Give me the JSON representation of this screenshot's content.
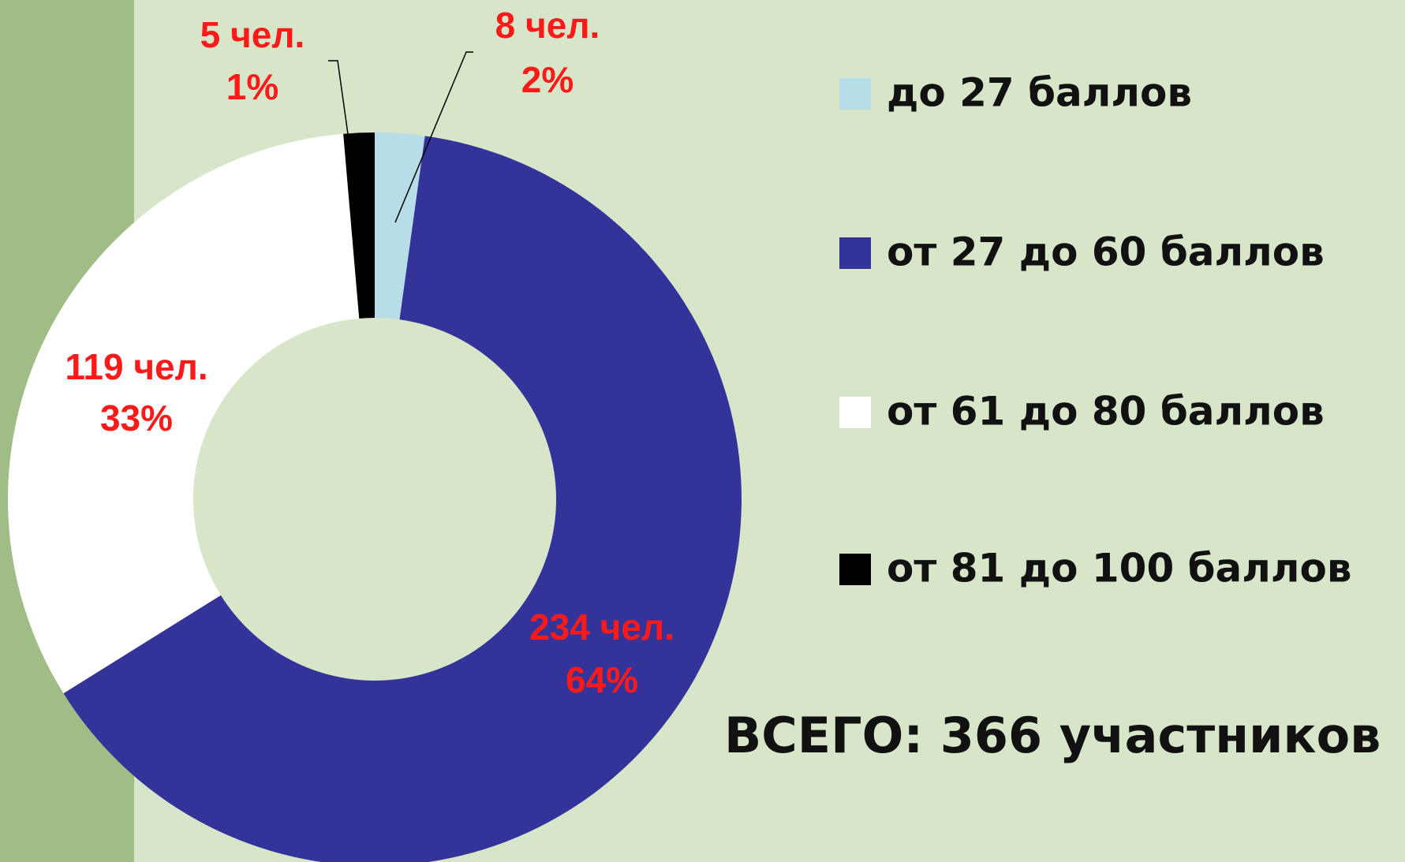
{
  "chart_data": {
    "type": "donut",
    "categories": [
      "до 27 баллов",
      "от 27 до 60 баллов",
      "от 61 до 80 баллов",
      "от 81 до 100 баллов"
    ],
    "values": [
      8,
      234,
      119,
      5
    ],
    "value_labels": [
      "8 чел.",
      "234 чел.",
      "119 чел.",
      "5 чел."
    ],
    "percents": [
      2,
      64,
      33,
      1
    ],
    "percent_labels": [
      "2%",
      "64%",
      "33%",
      "1%"
    ],
    "colors": [
      "#b7dde8",
      "#333399",
      "#ffffff",
      "#000000"
    ],
    "total_label": "ВСЕГО: 366 участников"
  }
}
